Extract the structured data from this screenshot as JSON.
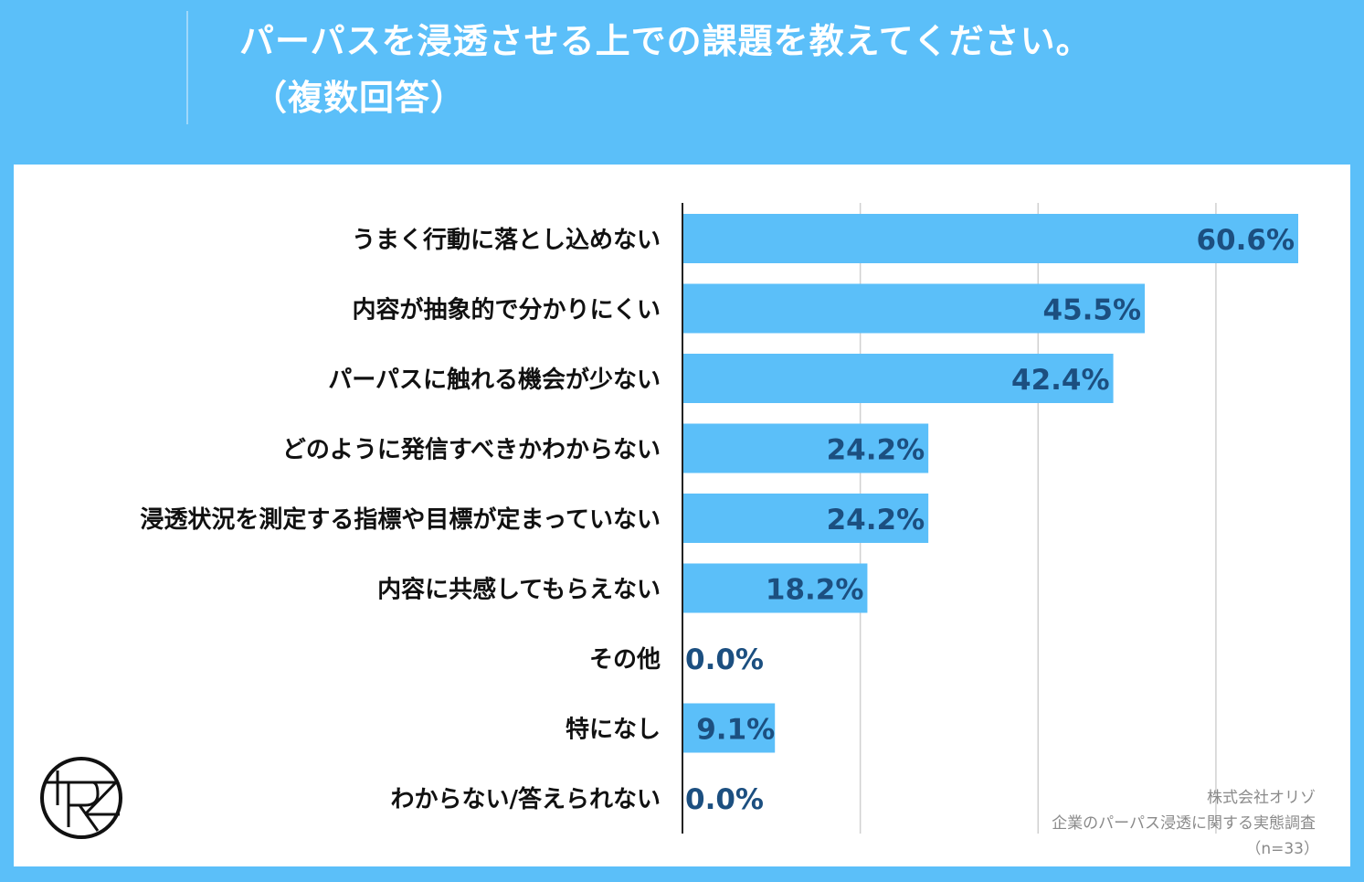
{
  "title": {
    "line1": "パーパスを浸透させる上での課題を教えてください。",
    "line2": "（複数回答）"
  },
  "chart_data": {
    "type": "bar",
    "orientation": "horizontal",
    "categories": [
      "うまく行動に落とし込めない",
      "内容が抽象的で分かりにくい",
      "パーパスに触れる機会が少ない",
      "どのように発信すべきかわからない",
      "浸透状況を測定する指標や目標が定まっていない",
      "内容に共感してもらえない",
      "その他",
      "特になし",
      "わからない/答えられない"
    ],
    "values": [
      60.6,
      45.5,
      42.4,
      24.2,
      24.2,
      18.2,
      0.0,
      9.1,
      0.0
    ],
    "data_labels": [
      "60.6%",
      "45.5%",
      "42.4%",
      "24.2%",
      "24.2%",
      "18.2%",
      "0.0%",
      "9.1%",
      "0.0%"
    ],
    "unit": "%",
    "xlim": [
      0,
      70
    ],
    "grid": true,
    "legend": "none",
    "colors": {
      "bar": "#5bbff9",
      "label": "#1c4f80",
      "background": "#5bbff9"
    }
  },
  "source": {
    "company": "株式会社オリゾ",
    "survey": "企業のパーパス浸透に関する実態調査",
    "sample": "（n=33）"
  },
  "logo": {
    "text": "RZ"
  }
}
